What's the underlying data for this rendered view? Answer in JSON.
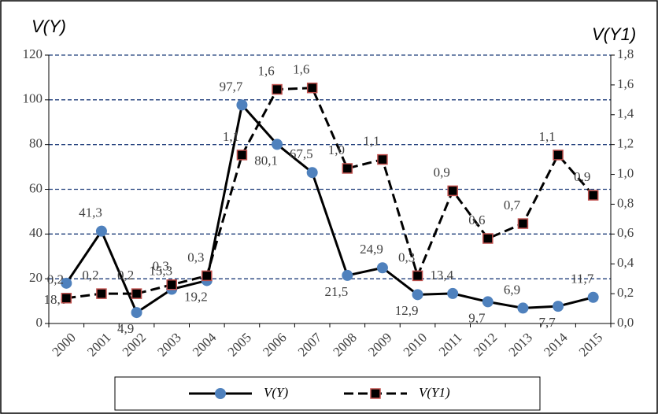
{
  "chart_data": {
    "type": "line",
    "y_title": "V(Y)",
    "y2_title": "V(Y1)",
    "categories": [
      "2000",
      "2001",
      "2002",
      "2003",
      "2004",
      "2005",
      "2006",
      "2007",
      "2008",
      "2009",
      "2010",
      "2011",
      "2012",
      "2013",
      "2014",
      "2015"
    ],
    "series": [
      {
        "name": "V(Y)",
        "color": "#000000",
        "marker": "circle",
        "marker_color": "#4f81bd",
        "dash": false,
        "values": [
          18.0,
          41.3,
          4.9,
          15.3,
          19.2,
          97.7,
          80.1,
          67.5,
          21.5,
          24.9,
          12.9,
          13.4,
          9.7,
          6.9,
          7.7,
          11.7
        ],
        "value_labels": [
          "18,0",
          "41,3",
          "4,9",
          "15,3",
          "19,2",
          "97,7",
          "80,1",
          "67,5",
          "21,5",
          "24,9",
          "12,9",
          "13,4",
          "9,7",
          "6,9",
          "7,7",
          "11,7"
        ]
      },
      {
        "name": "V(Y1)",
        "color": "#000000",
        "marker": "square",
        "marker_color": "#000000",
        "marker_edge": "#c0504d",
        "dash": true,
        "axis": "y2",
        "values": [
          0.17,
          0.2,
          0.2,
          0.26,
          0.32,
          1.13,
          1.57,
          1.58,
          1.04,
          1.1,
          0.32,
          0.89,
          0.57,
          0.67,
          1.13,
          0.86
        ],
        "value_labels": [
          "0,2",
          "0,2",
          "0,2",
          "0,3",
          "0,3",
          "1,1",
          "1,6",
          "1,6",
          "1,0",
          "1,1",
          "0,3",
          "0,9",
          "0,6",
          "0,7",
          "1,1",
          "0,9"
        ]
      }
    ],
    "ylim": [
      0,
      120
    ],
    "yticks": [
      0,
      20,
      40,
      60,
      80,
      100,
      120
    ],
    "y2lim": [
      0,
      1.8
    ],
    "y2ticks": [
      {
        "value": 0,
        "label": "0,0"
      },
      {
        "value": 0.2,
        "label": "0,2"
      },
      {
        "value": 0.4,
        "label": "0,4"
      },
      {
        "value": 0.6,
        "label": "0,6"
      },
      {
        "value": 0.8,
        "label": "0,8"
      },
      {
        "value": 1.0,
        "label": "1,0"
      },
      {
        "value": 1.2,
        "label": "1,2"
      },
      {
        "value": 1.4,
        "label": "1,4"
      },
      {
        "value": 1.6,
        "label": "1,6"
      },
      {
        "value": 1.8,
        "label": "1,8"
      }
    ],
    "grid": true,
    "grid_color": "#1f3d7a",
    "legend": "bottom"
  }
}
